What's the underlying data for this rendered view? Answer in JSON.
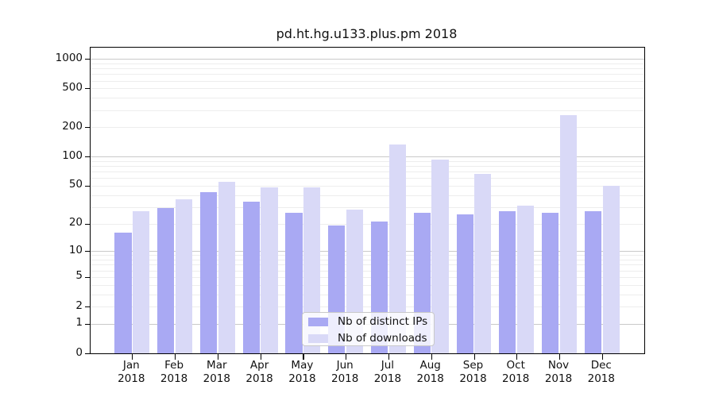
{
  "title": "pd.ht.hg.u133.plus.pm 2018",
  "chart_data": {
    "type": "bar",
    "title": "pd.ht.hg.u133.plus.pm 2018",
    "categories": [
      "Jan",
      "Feb",
      "Mar",
      "Apr",
      "May",
      "Jun",
      "Jul",
      "Aug",
      "Sep",
      "Oct",
      "Nov",
      "Dec"
    ],
    "year_label": "2018",
    "series": [
      {
        "name": "Nb of distinct IPs",
        "color": "#a9a9f3",
        "values": [
          16,
          29,
          43,
          34,
          26,
          19,
          21,
          26,
          25,
          27,
          26,
          27
        ]
      },
      {
        "name": "Nb of downloads",
        "color": "#d9d9f7",
        "values": [
          27,
          36,
          55,
          48,
          48,
          28,
          133,
          93,
          67,
          31,
          268,
          50
        ]
      }
    ],
    "y_axis": {
      "scale": "log1p",
      "tick_values": [
        0,
        1,
        2,
        5,
        10,
        20,
        50,
        100,
        200,
        500,
        1000
      ],
      "tick_labels": [
        "0",
        "1",
        "2",
        "5",
        "10",
        "20",
        "50",
        "100",
        "200",
        "500",
        "1000"
      ],
      "major_grid_values": [
        1,
        10,
        100,
        1000
      ],
      "range": [
        0,
        1300
      ],
      "grid": true
    },
    "legend": {
      "position": "lower-center",
      "entries": [
        "Nb of distinct IPs",
        "Nb of downloads"
      ]
    }
  }
}
